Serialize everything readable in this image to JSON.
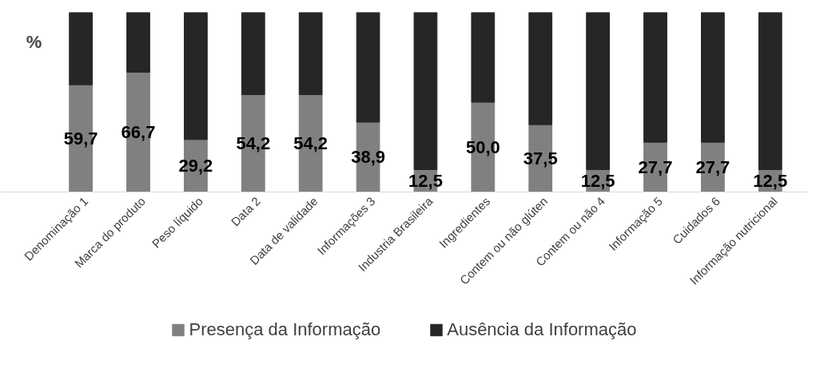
{
  "chart_data": {
    "type": "bar",
    "stacked": true,
    "ylabel": "%",
    "ylim": [
      0,
      100
    ],
    "categories": [
      "Denominação 1",
      "Marca do produto",
      "Peso líquido",
      "Data 2",
      "Data de validade",
      "Informações 3",
      "Industria Brasileira",
      "Ingredientes",
      "Contem ou não glúten",
      "Contem ou não 4",
      "Informação 5",
      "Cuidados 6",
      "Informação nutricional"
    ],
    "series": [
      {
        "name": "Presença da Informação",
        "color": "#808080",
        "values": [
          59.7,
          66.7,
          29.2,
          54.2,
          54.2,
          38.9,
          12.5,
          50.0,
          37.5,
          12.5,
          27.7,
          27.7,
          12.5
        ],
        "value_labels": [
          "59,7",
          "66,7",
          "29,2",
          "54,2",
          "54,2",
          "38,9",
          "12,5",
          "50,0",
          "37,5",
          "12,5",
          "27,7",
          "27,7",
          "12,5"
        ]
      },
      {
        "name": "Ausência da Informação",
        "color": "#262626",
        "values": [
          40.3,
          33.3,
          70.8,
          45.8,
          45.8,
          61.1,
          87.5,
          50.0,
          62.5,
          87.5,
          72.3,
          72.3,
          87.5
        ]
      }
    ],
    "legend": "bottom"
  }
}
